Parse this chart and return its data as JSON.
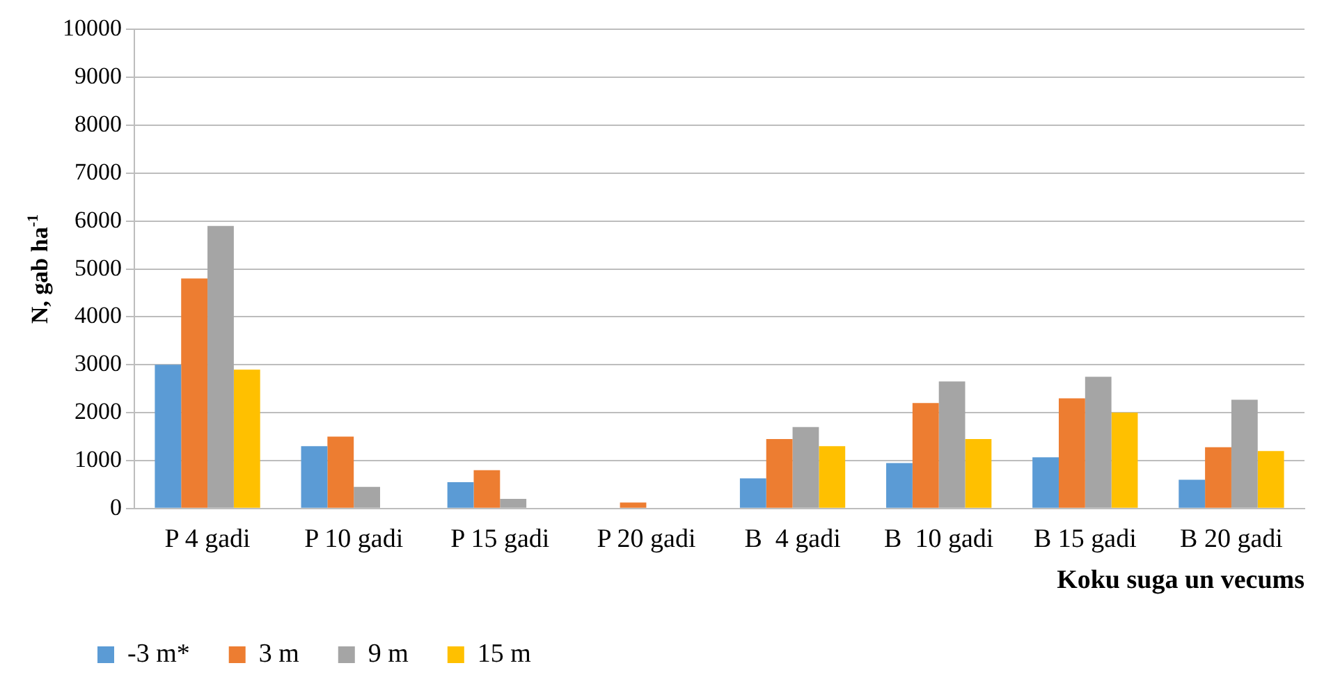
{
  "chart_data": {
    "type": "bar",
    "xlabel": "Koku suga un vecums",
    "ylabel": "N, gab ha$^{-1}$",
    "categories": [
      "P 4 gadi",
      "P 10 gadi",
      "P 15 gadi",
      "P 20 gadi",
      "B  4 gadi",
      "B  10 gadi",
      "B 15 gadi",
      "B 20 gadi"
    ],
    "series": [
      {
        "name": "-3 m*",
        "color": "#5b9bd5",
        "values": [
          3000,
          1300,
          550,
          0,
          630,
          950,
          1070,
          600
        ]
      },
      {
        "name": "3 m",
        "color": "#ed7d31",
        "values": [
          4800,
          1500,
          800,
          125,
          1450,
          2200,
          2300,
          1280
        ]
      },
      {
        "name": "9 m",
        "color": "#a5a5a5",
        "values": [
          5900,
          450,
          200,
          0,
          1700,
          2650,
          2750,
          2270
        ]
      },
      {
        "name": "15 m",
        "color": "#ffc000",
        "values": [
          2900,
          0,
          0,
          0,
          1300,
          1450,
          2000,
          1200
        ]
      }
    ],
    "ylim": [
      0,
      10000
    ],
    "yticks": [
      0,
      1000,
      2000,
      3000,
      4000,
      5000,
      6000,
      7000,
      8000,
      9000,
      10000
    ],
    "grid": "y",
    "legend": "bottom left"
  }
}
